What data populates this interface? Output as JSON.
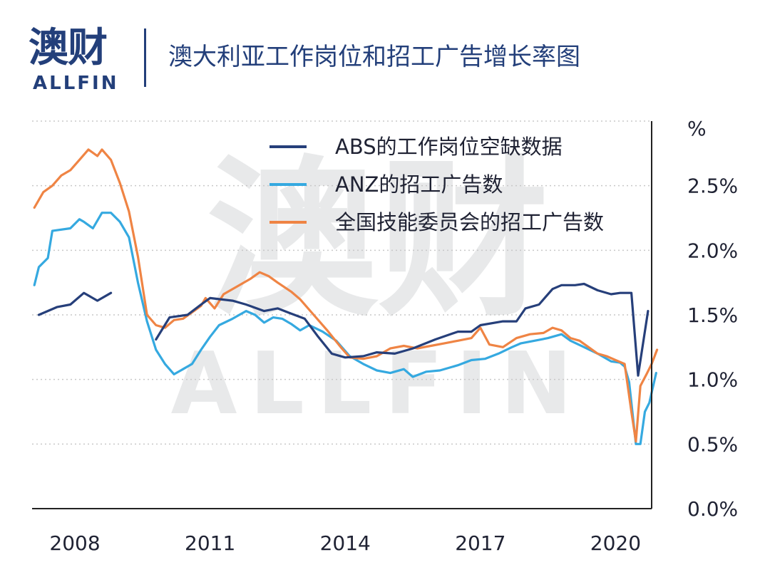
{
  "header": {
    "logo_cn": "澳财",
    "logo_en": "ALLFIN",
    "title": "澳大利亚工作岗位和招工广告增长率图"
  },
  "watermark": {
    "cn": "澳财",
    "en": "ALLFIN"
  },
  "colors": {
    "brand": "#233f7a",
    "abs": "#263f7a",
    "anz": "#35a9e0",
    "nsc": "#ef8444",
    "grid": "#c8c8c8"
  },
  "chart_data": {
    "type": "line",
    "unit_label": "%",
    "y_ticks": [
      "0.0%",
      "0.5%",
      "1.0%",
      "1.5%",
      "2.0%",
      "2.5%"
    ],
    "y_tick_values": [
      0,
      0.5,
      1.0,
      1.5,
      2.0,
      2.5
    ],
    "ylim": [
      0,
      3.0
    ],
    "x_ticks": [
      "2008",
      "2011",
      "2014",
      "2017",
      "2020"
    ],
    "x_tick_values": [
      2008,
      2011,
      2014,
      2017,
      2020
    ],
    "xlim": [
      2007.05,
      2020.8
    ],
    "legend_position": "top-right",
    "series": [
      {
        "name": "ABS的工作岗位空缺数据",
        "color": "#263f7a",
        "segments": [
          [
            [
              2007.2,
              1.5
            ],
            [
              2007.6,
              1.56
            ],
            [
              2007.9,
              1.58
            ],
            [
              2008.2,
              1.67
            ],
            [
              2008.5,
              1.61
            ],
            [
              2008.8,
              1.67
            ]
          ],
          [
            [
              2009.8,
              1.31
            ],
            [
              2010.1,
              1.48
            ],
            [
              2010.5,
              1.5
            ],
            [
              2010.8,
              1.58
            ],
            [
              2011.0,
              1.63
            ],
            [
              2011.5,
              1.61
            ],
            [
              2011.8,
              1.58
            ],
            [
              2012.2,
              1.53
            ],
            [
              2012.5,
              1.55
            ],
            [
              2012.8,
              1.51
            ],
            [
              2013.1,
              1.47
            ],
            [
              2013.4,
              1.33
            ],
            [
              2013.7,
              1.2
            ],
            [
              2014.0,
              1.17
            ],
            [
              2014.4,
              1.18
            ],
            [
              2014.7,
              1.21
            ],
            [
              2015.1,
              1.2
            ],
            [
              2015.5,
              1.24
            ],
            [
              2016.0,
              1.31
            ],
            [
              2016.5,
              1.37
            ],
            [
              2016.8,
              1.37
            ],
            [
              2017.0,
              1.42
            ],
            [
              2017.5,
              1.45
            ],
            [
              2017.8,
              1.45
            ],
            [
              2018.0,
              1.55
            ],
            [
              2018.3,
              1.58
            ],
            [
              2018.6,
              1.7
            ],
            [
              2018.8,
              1.73
            ],
            [
              2019.1,
              1.73
            ],
            [
              2019.3,
              1.74
            ],
            [
              2019.6,
              1.69
            ],
            [
              2019.9,
              1.66
            ],
            [
              2020.1,
              1.67
            ],
            [
              2020.35,
              1.67
            ],
            [
              2020.5,
              1.03
            ],
            [
              2020.72,
              1.53
            ]
          ]
        ]
      },
      {
        "name": "ANZ的招工广告数",
        "color": "#35a9e0",
        "segments": [
          [
            [
              2007.1,
              1.73
            ],
            [
              2007.2,
              1.87
            ],
            [
              2007.4,
              1.94
            ],
            [
              2007.5,
              2.15
            ],
            [
              2007.9,
              2.17
            ],
            [
              2008.1,
              2.24
            ],
            [
              2008.2,
              2.22
            ],
            [
              2008.4,
              2.17
            ],
            [
              2008.6,
              2.29
            ],
            [
              2008.8,
              2.29
            ],
            [
              2009.0,
              2.22
            ],
            [
              2009.2,
              2.1
            ],
            [
              2009.4,
              1.75
            ],
            [
              2009.6,
              1.45
            ],
            [
              2009.8,
              1.23
            ],
            [
              2010.0,
              1.12
            ],
            [
              2010.2,
              1.04
            ],
            [
              2010.4,
              1.08
            ],
            [
              2010.6,
              1.12
            ],
            [
              2010.8,
              1.23
            ],
            [
              2011.0,
              1.33
            ],
            [
              2011.2,
              1.42
            ],
            [
              2011.5,
              1.47
            ],
            [
              2011.8,
              1.53
            ],
            [
              2012.0,
              1.5
            ],
            [
              2012.2,
              1.44
            ],
            [
              2012.4,
              1.48
            ],
            [
              2012.6,
              1.47
            ],
            [
              2012.8,
              1.43
            ],
            [
              2013.0,
              1.38
            ],
            [
              2013.2,
              1.42
            ],
            [
              2013.5,
              1.37
            ],
            [
              2013.8,
              1.3
            ],
            [
              2014.1,
              1.18
            ],
            [
              2014.4,
              1.12
            ],
            [
              2014.7,
              1.07
            ],
            [
              2015.0,
              1.05
            ],
            [
              2015.3,
              1.08
            ],
            [
              2015.5,
              1.02
            ],
            [
              2015.8,
              1.06
            ],
            [
              2016.1,
              1.07
            ],
            [
              2016.5,
              1.11
            ],
            [
              2016.8,
              1.15
            ],
            [
              2017.1,
              1.16
            ],
            [
              2017.4,
              1.2
            ],
            [
              2017.7,
              1.25
            ],
            [
              2017.9,
              1.28
            ],
            [
              2018.2,
              1.3
            ],
            [
              2018.5,
              1.32
            ],
            [
              2018.8,
              1.35
            ],
            [
              2019.0,
              1.3
            ],
            [
              2019.3,
              1.25
            ],
            [
              2019.6,
              1.2
            ],
            [
              2019.9,
              1.14
            ],
            [
              2020.1,
              1.13
            ],
            [
              2020.2,
              1.1
            ],
            [
              2020.3,
              0.98
            ],
            [
              2020.45,
              0.5
            ],
            [
              2020.55,
              0.5
            ],
            [
              2020.65,
              0.75
            ],
            [
              2020.75,
              0.82
            ],
            [
              2020.9,
              1.05
            ]
          ]
        ]
      },
      {
        "name": "全国技能委员会的招工广告数",
        "color": "#ef8444",
        "segments": [
          [
            [
              2007.1,
              2.33
            ],
            [
              2007.3,
              2.45
            ],
            [
              2007.5,
              2.5
            ],
            [
              2007.7,
              2.58
            ],
            [
              2007.9,
              2.62
            ],
            [
              2008.1,
              2.7
            ],
            [
              2008.3,
              2.78
            ],
            [
              2008.5,
              2.73
            ],
            [
              2008.6,
              2.78
            ],
            [
              2008.8,
              2.7
            ],
            [
              2009.0,
              2.52
            ],
            [
              2009.2,
              2.3
            ],
            [
              2009.4,
              1.95
            ],
            [
              2009.6,
              1.5
            ],
            [
              2009.8,
              1.42
            ],
            [
              2010.0,
              1.4
            ],
            [
              2010.2,
              1.46
            ],
            [
              2010.4,
              1.47
            ],
            [
              2010.6,
              1.52
            ],
            [
              2010.8,
              1.57
            ],
            [
              2010.9,
              1.63
            ],
            [
              2011.1,
              1.55
            ],
            [
              2011.3,
              1.66
            ],
            [
              2011.6,
              1.72
            ],
            [
              2011.9,
              1.78
            ],
            [
              2012.1,
              1.83
            ],
            [
              2012.3,
              1.8
            ],
            [
              2012.5,
              1.75
            ],
            [
              2012.8,
              1.68
            ],
            [
              2013.0,
              1.62
            ],
            [
              2013.3,
              1.5
            ],
            [
              2013.6,
              1.38
            ],
            [
              2013.9,
              1.25
            ],
            [
              2014.1,
              1.17
            ],
            [
              2014.4,
              1.16
            ],
            [
              2014.7,
              1.18
            ],
            [
              2015.0,
              1.24
            ],
            [
              2015.3,
              1.26
            ],
            [
              2015.6,
              1.24
            ],
            [
              2015.9,
              1.26
            ],
            [
              2016.2,
              1.28
            ],
            [
              2016.5,
              1.3
            ],
            [
              2016.8,
              1.32
            ],
            [
              2017.0,
              1.4
            ],
            [
              2017.2,
              1.27
            ],
            [
              2017.5,
              1.25
            ],
            [
              2017.8,
              1.32
            ],
            [
              2018.1,
              1.35
            ],
            [
              2018.4,
              1.36
            ],
            [
              2018.6,
              1.4
            ],
            [
              2018.8,
              1.38
            ],
            [
              2019.0,
              1.32
            ],
            [
              2019.2,
              1.3
            ],
            [
              2019.4,
              1.25
            ],
            [
              2019.6,
              1.2
            ],
            [
              2019.8,
              1.18
            ],
            [
              2020.0,
              1.15
            ],
            [
              2020.2,
              1.12
            ],
            [
              2020.35,
              0.75
            ],
            [
              2020.45,
              0.52
            ],
            [
              2020.55,
              0.95
            ],
            [
              2020.7,
              1.05
            ],
            [
              2020.8,
              1.12
            ],
            [
              2020.92,
              1.23
            ]
          ]
        ]
      }
    ]
  }
}
